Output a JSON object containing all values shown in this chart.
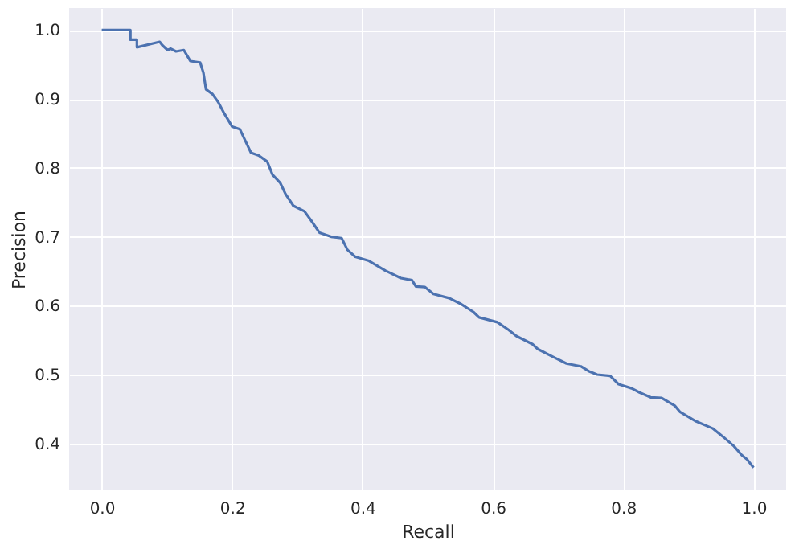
{
  "chart_data": {
    "type": "line",
    "xlabel": "Recall",
    "ylabel": "Precision",
    "xlim": [
      -0.05,
      1.05
    ],
    "ylim": [
      0.332,
      1.032
    ],
    "xticks": [
      {
        "value": 0,
        "label": "0.0"
      },
      {
        "value": 0.2,
        "label": "0.2"
      },
      {
        "value": 0.4,
        "label": "0.4"
      },
      {
        "value": 0.6,
        "label": "0.6"
      },
      {
        "value": 0.8,
        "label": "0.8"
      },
      {
        "value": 1,
        "label": "1.0"
      }
    ],
    "yticks": [
      {
        "value": 0.4,
        "label": "0.4"
      },
      {
        "value": 0.5,
        "label": "0.5"
      },
      {
        "value": 0.6,
        "label": "0.6"
      },
      {
        "value": 0.7,
        "label": "0.7"
      },
      {
        "value": 0.8,
        "label": "0.8"
      },
      {
        "value": 0.9,
        "label": "0.9"
      },
      {
        "value": 1,
        "label": "1.0"
      }
    ],
    "grid": true,
    "marker": "none",
    "line_style": "solid",
    "series": [
      {
        "color": "#4c72b0",
        "x": [
          0,
          0.044,
          0.044,
          0.054,
          0.054,
          0.089,
          0.093,
          0.101,
          0.106,
          0.114,
          0.126,
          0.131,
          0.136,
          0.151,
          0.156,
          0.16,
          0.17,
          0.179,
          0.188,
          0.2,
          0.212,
          0.22,
          0.229,
          0.241,
          0.254,
          0.262,
          0.274,
          0.282,
          0.294,
          0.311,
          0.321,
          0.334,
          0.352,
          0.368,
          0.377,
          0.389,
          0.41,
          0.435,
          0.459,
          0.476,
          0.482,
          0.496,
          0.509,
          0.533,
          0.55,
          0.57,
          0.579,
          0.607,
          0.624,
          0.636,
          0.661,
          0.669,
          0.694,
          0.713,
          0.735,
          0.747,
          0.76,
          0.78,
          0.793,
          0.813,
          0.825,
          0.842,
          0.859,
          0.879,
          0.887,
          0.912,
          0.937,
          0.953,
          0.97,
          0.982,
          0.99,
          1.0
        ],
        "values": [
          1.0,
          1.0,
          0.986,
          0.986,
          0.975,
          0.983,
          0.978,
          0.971,
          0.973,
          0.969,
          0.971,
          0.963,
          0.955,
          0.953,
          0.938,
          0.914,
          0.907,
          0.895,
          0.879,
          0.86,
          0.856,
          0.84,
          0.822,
          0.818,
          0.809,
          0.79,
          0.778,
          0.762,
          0.745,
          0.737,
          0.724,
          0.706,
          0.7,
          0.698,
          0.681,
          0.671,
          0.665,
          0.651,
          0.64,
          0.637,
          0.628,
          0.627,
          0.617,
          0.611,
          0.603,
          0.591,
          0.583,
          0.576,
          0.565,
          0.556,
          0.544,
          0.537,
          0.525,
          0.516,
          0.512,
          0.505,
          0.5,
          0.498,
          0.486,
          0.48,
          0.474,
          0.467,
          0.466,
          0.455,
          0.446,
          0.432,
          0.422,
          0.41,
          0.396,
          0.383,
          0.377,
          0.365
        ]
      }
    ]
  }
}
